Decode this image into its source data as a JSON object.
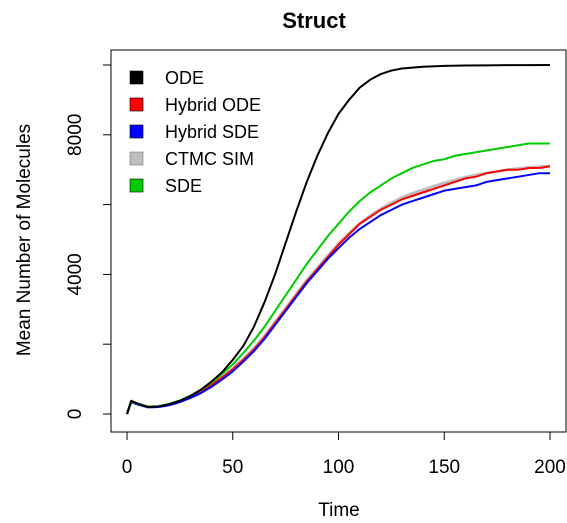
{
  "chart_data": {
    "type": "line",
    "title": "Struct",
    "xlabel": "Time",
    "ylabel": "Mean Number of Molecules",
    "xlim": [
      0,
      200
    ],
    "ylim": [
      0,
      10000
    ],
    "xticks": [
      0,
      50,
      100,
      150,
      200
    ],
    "yticks": [
      0,
      4000,
      8000
    ],
    "yticks_unlabeled": [
      2000,
      6000,
      10000
    ],
    "grid": false,
    "legend_position": "top-left",
    "series": [
      {
        "name": "ODE",
        "color": "#000000",
        "x": [
          0,
          2,
          5,
          10,
          15,
          20,
          25,
          30,
          35,
          40,
          45,
          50,
          55,
          60,
          65,
          70,
          75,
          80,
          85,
          90,
          95,
          100,
          105,
          110,
          115,
          120,
          125,
          130,
          140,
          150,
          160,
          170,
          180,
          190,
          200
        ],
        "y": [
          0,
          380,
          300,
          200,
          220,
          280,
          380,
          520,
          700,
          930,
          1200,
          1550,
          1950,
          2500,
          3200,
          4000,
          4900,
          5800,
          6650,
          7400,
          8050,
          8600,
          9000,
          9350,
          9580,
          9740,
          9840,
          9900,
          9950,
          9975,
          9985,
          9990,
          9995,
          9998,
          10000
        ]
      },
      {
        "name": "Hybrid ODE",
        "color": "#ff0000",
        "x": [
          0,
          2,
          5,
          10,
          15,
          20,
          25,
          30,
          35,
          40,
          45,
          50,
          55,
          60,
          65,
          70,
          75,
          80,
          85,
          90,
          95,
          100,
          105,
          110,
          115,
          120,
          125,
          130,
          135,
          140,
          145,
          150,
          155,
          160,
          165,
          170,
          175,
          180,
          185,
          190,
          195,
          200
        ],
        "y": [
          0,
          350,
          280,
          200,
          210,
          270,
          360,
          480,
          640,
          830,
          1050,
          1280,
          1550,
          1850,
          2200,
          2600,
          3000,
          3400,
          3800,
          4150,
          4500,
          4850,
          5150,
          5450,
          5650,
          5850,
          6000,
          6150,
          6250,
          6350,
          6450,
          6550,
          6650,
          6750,
          6800,
          6900,
          6950,
          7000,
          7000,
          7050,
          7050,
          7100
        ]
      },
      {
        "name": "Hybrid SDE",
        "color": "#0000ff",
        "x": [
          0,
          2,
          5,
          10,
          15,
          20,
          25,
          30,
          35,
          40,
          45,
          50,
          55,
          60,
          65,
          70,
          75,
          80,
          85,
          90,
          95,
          100,
          105,
          110,
          115,
          120,
          125,
          130,
          135,
          140,
          145,
          150,
          155,
          160,
          165,
          170,
          175,
          180,
          185,
          190,
          195,
          200
        ],
        "y": [
          0,
          340,
          270,
          190,
          200,
          250,
          340,
          460,
          600,
          780,
          990,
          1220,
          1500,
          1800,
          2150,
          2550,
          2950,
          3350,
          3750,
          4100,
          4450,
          4750,
          5050,
          5300,
          5500,
          5700,
          5850,
          6000,
          6100,
          6200,
          6300,
          6400,
          6450,
          6500,
          6550,
          6650,
          6700,
          6750,
          6800,
          6850,
          6900,
          6900
        ]
      },
      {
        "name": "CTMC SIM",
        "color": "#bebebe",
        "x": [
          0,
          2,
          5,
          10,
          15,
          20,
          25,
          30,
          35,
          40,
          45,
          50,
          55,
          60,
          65,
          70,
          75,
          80,
          85,
          90,
          95,
          100,
          105,
          110,
          115,
          120,
          125,
          130,
          135,
          140,
          145,
          150,
          155,
          160,
          165,
          170,
          175,
          180,
          185,
          190,
          195,
          200
        ],
        "y": [
          0,
          360,
          290,
          205,
          215,
          275,
          370,
          490,
          650,
          840,
          1060,
          1300,
          1580,
          1880,
          2230,
          2630,
          3030,
          3430,
          3830,
          4180,
          4530,
          4880,
          5180,
          5450,
          5680,
          5880,
          6050,
          6200,
          6320,
          6420,
          6520,
          6620,
          6700,
          6780,
          6850,
          6900,
          6950,
          7000,
          7030,
          7060,
          7080,
          7100
        ]
      },
      {
        "name": "SDE",
        "color": "#00cc00",
        "x": [
          0,
          2,
          5,
          10,
          15,
          20,
          25,
          30,
          35,
          40,
          45,
          50,
          55,
          60,
          65,
          70,
          75,
          80,
          85,
          90,
          95,
          100,
          105,
          110,
          115,
          120,
          125,
          130,
          135,
          140,
          145,
          150,
          155,
          160,
          165,
          170,
          175,
          180,
          185,
          190,
          195,
          200
        ],
        "y": [
          0,
          360,
          290,
          210,
          220,
          290,
          390,
          520,
          690,
          900,
          1150,
          1420,
          1750,
          2100,
          2500,
          2950,
          3400,
          3850,
          4300,
          4700,
          5100,
          5450,
          5800,
          6100,
          6350,
          6550,
          6750,
          6900,
          7050,
          7150,
          7250,
          7300,
          7400,
          7450,
          7500,
          7550,
          7600,
          7650,
          7700,
          7750,
          7750,
          7750
        ]
      }
    ]
  }
}
